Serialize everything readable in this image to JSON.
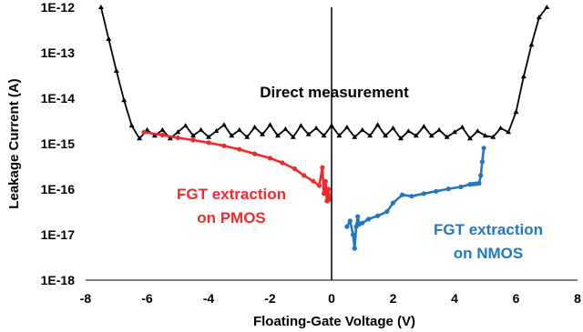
{
  "chart_data": {
    "type": "line",
    "xlabel": "Floating-Gate Voltage (V)",
    "ylabel": "Leakage Current (A)",
    "xlim": [
      -8,
      8
    ],
    "ylim": [
      1e-18,
      1e-12
    ],
    "y_scale": "log",
    "x_ticks": [
      "-8",
      "-6",
      "-4",
      "-2",
      "0",
      "2",
      "4",
      "6",
      "8"
    ],
    "y_ticks": [
      "1E-18",
      "1E-17",
      "1E-16",
      "1E-15",
      "1E-14",
      "1E-13",
      "1E-12"
    ],
    "grid": false,
    "colors": {
      "direct": "#000000",
      "pmos": "#ee2b2b",
      "nmos": "#1f78c1"
    },
    "annotations": [
      {
        "text": "Direct measurement",
        "color": "#000000"
      },
      {
        "text": "FGT extraction",
        "color": "#ee2b2b"
      },
      {
        "text": "on PMOS",
        "color": "#ee2b2b"
      },
      {
        "text": "FGT extraction",
        "color": "#1f78c1"
      },
      {
        "text": "on NMOS",
        "color": "#1f78c1"
      }
    ],
    "series": [
      {
        "id": "direct",
        "x": [
          -7.5,
          -7.25,
          -7.0,
          -6.75,
          -6.5,
          -6.25,
          -6.0,
          -5.75,
          -5.5,
          -5.25,
          -5.0,
          -4.75,
          -4.5,
          -4.25,
          -4.0,
          -3.75,
          -3.5,
          -3.25,
          -3.0,
          -2.75,
          -2.5,
          -2.25,
          -2.0,
          -1.75,
          -1.5,
          -1.25,
          -1.0,
          -0.75,
          -0.5,
          -0.25,
          0.0,
          0.25,
          0.5,
          0.75,
          1.0,
          1.25,
          1.5,
          1.75,
          2.0,
          2.25,
          2.5,
          2.75,
          3.0,
          3.25,
          3.5,
          3.75,
          4.0,
          4.25,
          4.5,
          4.75,
          5.0,
          5.25,
          5.5,
          5.75,
          6.0,
          6.25,
          6.5,
          6.75,
          7.0
        ],
        "y": [
          1e-12,
          2e-13,
          4e-14,
          9e-15,
          2.5e-15,
          1.3e-15,
          2e-15,
          1.5e-15,
          2e-15,
          1.3e-15,
          1.8e-15,
          2.5e-15,
          1.5e-15,
          2e-15,
          1.4e-15,
          1.9e-15,
          2.6e-15,
          1.5e-15,
          2e-15,
          1.4e-15,
          2.3e-15,
          1.6e-15,
          2.6e-15,
          1.5e-15,
          2.1e-15,
          1.4e-15,
          2.5e-15,
          1.6e-15,
          2.2e-15,
          1.5e-15,
          2.5e-15,
          1.5e-15,
          2.3e-15,
          1.4e-15,
          2e-15,
          1.5e-15,
          2.6e-15,
          1.5e-15,
          2.2e-15,
          1.3e-15,
          1.9e-15,
          1.5e-15,
          2.4e-15,
          1.5e-15,
          2e-15,
          1.4e-15,
          1.8e-15,
          2.3e-15,
          1.3e-15,
          1.9e-15,
          1.5e-15,
          1.4e-15,
          2.2e-15,
          1.8e-15,
          5e-15,
          3e-14,
          1.5e-13,
          6e-13,
          1e-12
        ]
      },
      {
        "id": "pmos",
        "x": [
          -6.1,
          -5.5,
          -5.0,
          -4.5,
          -4.0,
          -3.5,
          -3.0,
          -2.5,
          -2.0,
          -1.6,
          -1.2,
          -0.9,
          -0.6,
          -0.4,
          -0.3,
          -0.25,
          -0.2,
          -0.15,
          -0.1,
          -0.05
        ],
        "y": [
          1.8e-15,
          1.55e-15,
          1.35e-15,
          1.2e-15,
          1.05e-15,
          9e-16,
          7.5e-16,
          6e-16,
          4.8e-16,
          3.8e-16,
          2.8e-16,
          2e-16,
          1.5e-16,
          1.2e-16,
          3e-16,
          8e-17,
          1.5e-16,
          5.5e-17,
          1e-16,
          6e-17
        ]
      },
      {
        "id": "nmos",
        "x": [
          0.5,
          0.6,
          0.7,
          0.75,
          0.8,
          0.85,
          0.9,
          1.0,
          1.2,
          1.5,
          1.8,
          2.0,
          2.3,
          2.6,
          3.0,
          3.4,
          3.8,
          4.2,
          4.5,
          4.6,
          4.7,
          4.8,
          4.85,
          4.9,
          4.95
        ],
        "y": [
          1.5e-17,
          2e-17,
          1e-17,
          5e-18,
          1.5e-17,
          2.5e-17,
          1.7e-17,
          1.8e-17,
          2.2e-17,
          2.6e-17,
          3.2e-17,
          5e-17,
          7.5e-17,
          7e-17,
          8e-17,
          9e-17,
          1.02e-16,
          1.12e-16,
          1.28e-16,
          1.3e-16,
          1.32e-16,
          1.35e-16,
          2e-16,
          4e-16,
          8e-16
        ]
      }
    ]
  }
}
